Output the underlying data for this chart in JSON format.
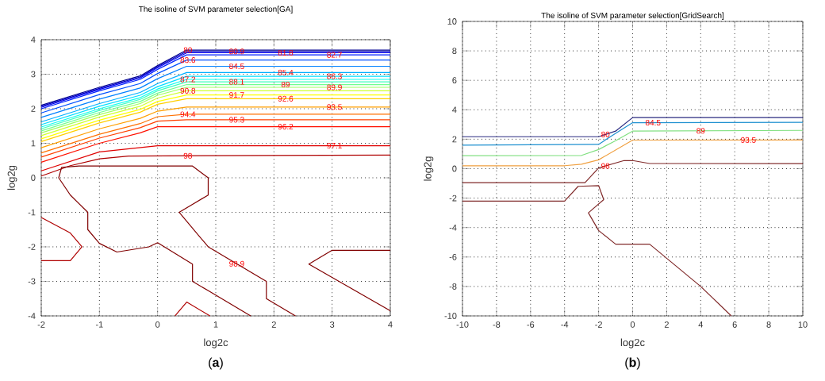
{
  "chart_data": [
    {
      "type": "line",
      "title": "The isoline of SVM parameter selection[GA]",
      "xlabel": "log2c",
      "ylabel": "log2g",
      "xlim": [
        -2,
        4
      ],
      "ylim": [
        -4,
        4
      ],
      "xticks": [
        -2,
        -1,
        0,
        1,
        2,
        3,
        4
      ],
      "yticks": [
        -4,
        -3,
        -2,
        -1,
        0,
        1,
        2,
        3,
        4
      ],
      "grid": true,
      "annotations": [
        "(**a**)"
      ],
      "series": [
        {
          "name": "80",
          "color": "#00008f",
          "x": [
            -2,
            -1,
            -0.3,
            0,
            0.5,
            4
          ],
          "values": [
            2.1,
            2.62,
            2.95,
            3.25,
            3.7,
            3.7
          ]
        },
        {
          "name": "80.9",
          "color": "#0000bf",
          "x": [
            -2,
            -1,
            -0.3,
            0,
            0.5,
            4
          ],
          "values": [
            2.07,
            2.59,
            2.92,
            3.22,
            3.66,
            3.66
          ]
        },
        {
          "name": "81.8",
          "color": "#0000ef",
          "x": [
            -2,
            -1,
            -0.3,
            0,
            0.5,
            4
          ],
          "values": [
            2.04,
            2.56,
            2.89,
            3.19,
            3.62,
            3.62
          ]
        },
        {
          "name": "82.7",
          "color": "#0020ff",
          "x": [
            -2,
            -1,
            -0.3,
            0,
            0.5,
            4
          ],
          "values": [
            2.0,
            2.52,
            2.85,
            3.14,
            3.56,
            3.56
          ]
        },
        {
          "name": "83.6",
          "color": "#0050ff",
          "x": [
            -2,
            -1,
            -0.3,
            0,
            0.5,
            4
          ],
          "values": [
            1.88,
            2.41,
            2.73,
            3.02,
            3.41,
            3.41
          ]
        },
        {
          "name": "84.5",
          "color": "#0080ff",
          "x": [
            -2,
            -1,
            -0.3,
            0,
            0.5,
            4
          ],
          "values": [
            1.75,
            2.28,
            2.6,
            2.87,
            3.23,
            3.23
          ]
        },
        {
          "name": "85.4",
          "color": "#00b0ff",
          "x": [
            -2,
            -1,
            -0.3,
            0,
            0.5,
            4
          ],
          "values": [
            1.62,
            2.15,
            2.47,
            2.73,
            3.05,
            3.05
          ]
        },
        {
          "name": "86.3",
          "color": "#00dfff",
          "x": [
            -2,
            -1,
            -0.3,
            0,
            0.5,
            4
          ],
          "values": [
            1.54,
            2.07,
            2.39,
            2.64,
            2.94,
            2.94
          ]
        },
        {
          "name": "87.2",
          "color": "#10ffef",
          "x": [
            -2,
            -1,
            -0.3,
            0,
            0.5,
            4
          ],
          "values": [
            1.47,
            2.0,
            2.32,
            2.57,
            2.85,
            2.85
          ]
        },
        {
          "name": "88.1",
          "color": "#40ffbf",
          "x": [
            -2,
            -1,
            -0.3,
            0,
            0.5,
            4
          ],
          "values": [
            1.42,
            1.95,
            2.27,
            2.52,
            2.78,
            2.78
          ]
        },
        {
          "name": "89",
          "color": "#70ff8f",
          "x": [
            -2,
            -1,
            -0.3,
            0,
            0.5,
            4
          ],
          "values": [
            1.36,
            1.89,
            2.21,
            2.45,
            2.7,
            2.7
          ]
        },
        {
          "name": "89.9",
          "color": "#9fff60",
          "x": [
            -2,
            -1,
            -0.3,
            0,
            0.5,
            4
          ],
          "values": [
            1.3,
            1.83,
            2.15,
            2.39,
            2.62,
            2.62
          ]
        },
        {
          "name": "90.8",
          "color": "#cfff30",
          "x": [
            -2,
            -1,
            -0.3,
            0,
            0.5,
            4
          ],
          "values": [
            1.22,
            1.76,
            2.07,
            2.31,
            2.52,
            2.52
          ]
        },
        {
          "name": "91.7",
          "color": "#ffff00",
          "x": [
            -2,
            -1,
            -0.3,
            0,
            0.5,
            4
          ],
          "values": [
            1.13,
            1.67,
            1.98,
            2.21,
            2.4,
            2.4
          ]
        },
        {
          "name": "92.6",
          "color": "#ffcf00",
          "x": [
            -2,
            -1,
            -0.3,
            0,
            0.5,
            4
          ],
          "values": [
            1.05,
            1.59,
            1.9,
            2.13,
            2.29,
            2.29
          ]
        },
        {
          "name": "93.5",
          "color": "#ff9f00",
          "x": [
            -2,
            -1,
            -0.3,
            0,
            0.5,
            4
          ],
          "values": [
            0.87,
            1.42,
            1.72,
            1.93,
            2.05,
            2.05
          ]
        },
        {
          "name": "94.4",
          "color": "#ff7000",
          "x": [
            -2,
            -1,
            -0.3,
            0,
            0.5,
            4
          ],
          "values": [
            0.72,
            1.26,
            1.57,
            1.77,
            1.84,
            1.84
          ]
        },
        {
          "name": "95.3",
          "color": "#ff4000",
          "x": [
            -2,
            -1,
            -0.3,
            0,
            0.5,
            4
          ],
          "values": [
            0.6,
            1.15,
            1.45,
            1.64,
            1.68,
            1.68
          ]
        },
        {
          "name": "96.2",
          "color": "#ff1000",
          "x": [
            -2,
            -1,
            -0.3,
            0,
            0.5,
            4
          ],
          "values": [
            0.45,
            1.0,
            1.3,
            1.48,
            1.48,
            1.48
          ]
        },
        {
          "name": "97.1",
          "color": "#df0000",
          "x": [
            -2,
            -1,
            0,
            4
          ],
          "values": [
            0.2,
            0.75,
            0.93,
            0.93
          ]
        },
        {
          "name": "98",
          "color": "#af0000",
          "x": [
            -2,
            -1.5,
            -1,
            -0.5,
            4,
            null,
            -2,
            -1.5,
            -1.3,
            -1.5,
            -2,
            null,
            0.3,
            0.5,
            0.9
          ],
          "values": [
            0.05,
            0.35,
            0.55,
            0.63,
            0.66,
            null,
            -1.15,
            -1.6,
            -2.0,
            -2.4,
            -2.4,
            null,
            -4.0,
            -3.6,
            -4.0
          ]
        },
        {
          "name": "98.9",
          "color": "#800000",
          "x": [
            2.37,
            1.87,
            1.87,
            0.87,
            0.37,
            0.87,
            0.87,
            0.6,
            -1.35,
            -1.65,
            -1.7,
            -1.5,
            -1.2,
            -1.2,
            -1.0,
            -0.7,
            -0.15,
            0,
            0.6,
            0.6,
            0.85,
            1.6,
            null,
            4,
            3.0,
            2.6,
            4
          ],
          "values": [
            -4.0,
            -3.5,
            -3.0,
            -2.0,
            -1.0,
            -0.5,
            0.0,
            0.34,
            0.34,
            0.3,
            0.0,
            -0.5,
            -1.0,
            -1.5,
            -1.9,
            -2.15,
            -2.0,
            -1.88,
            -2.5,
            -3.0,
            -3.25,
            -4.0,
            null,
            -2.1,
            -2.1,
            -2.5,
            -3.85
          ]
        }
      ]
    },
    {
      "type": "line",
      "title": "The isoline of SVM parameter selection[GridSearch]",
      "xlabel": "log2c",
      "ylabel": "log2g",
      "xlim": [
        -10,
        10
      ],
      "ylim": [
        -10,
        10
      ],
      "xticks": [
        -10,
        -8,
        -6,
        -4,
        -2,
        0,
        2,
        4,
        6,
        8,
        10
      ],
      "yticks": [
        -10,
        -8,
        -6,
        -4,
        -2,
        0,
        2,
        4,
        6,
        8,
        10
      ],
      "grid": true,
      "annotations": [
        "(**b**)"
      ],
      "series": [
        {
          "name": "80",
          "color": "#2b2b80",
          "x": [
            -10,
            -2,
            -1,
            0,
            10
          ],
          "values": [
            2.17,
            2.17,
            2.55,
            3.47,
            3.47
          ]
        },
        {
          "name": "84.5",
          "color": "#1e90d0",
          "x": [
            -10,
            -2,
            -1,
            0,
            10
          ],
          "values": [
            1.6,
            1.65,
            2.4,
            3.12,
            3.15
          ]
        },
        {
          "name": "89",
          "color": "#80e080",
          "x": [
            -10,
            -3,
            -2,
            -1,
            0,
            10
          ],
          "values": [
            0.88,
            0.9,
            1.3,
            1.9,
            2.55,
            2.6
          ]
        },
        {
          "name": "93.5",
          "color": "#f0a040",
          "x": [
            -10,
            -4,
            -3,
            -2,
            0,
            10
          ],
          "values": [
            0.19,
            0.2,
            0.3,
            0.6,
            1.94,
            1.95
          ]
        },
        {
          "name": "98",
          "color": "#802a2a",
          "x": [
            10,
            1,
            0,
            -0.5,
            -2,
            -2.8,
            -10,
            null,
            -10,
            -4,
            -3.2,
            -2,
            -1.7,
            -2.6,
            -2,
            -1,
            1,
            4,
            5.8
          ],
          "values": [
            0.34,
            0.35,
            0.55,
            0.55,
            0.05,
            -0.95,
            -0.95,
            null,
            -2.2,
            -2.2,
            -1.2,
            -1.15,
            -2.1,
            -3.0,
            -4.2,
            -5.13,
            -5.13,
            -8.0,
            -10
          ]
        }
      ]
    }
  ]
}
